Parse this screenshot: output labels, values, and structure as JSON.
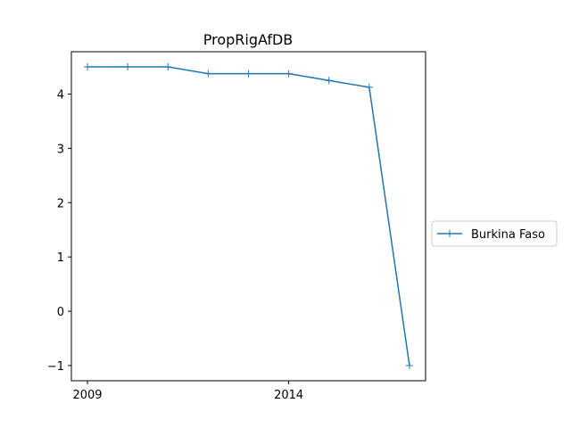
{
  "chart_data": {
    "type": "line",
    "title": "PropRigAfDB",
    "xlabel": "",
    "ylabel": "",
    "x": [
      2009,
      2010,
      2011,
      2012,
      2013,
      2014,
      2015,
      2016,
      2017
    ],
    "series": [
      {
        "name": "Burkina Faso",
        "color": "#1f77b4",
        "marker": "plus",
        "values": [
          4.5,
          4.5,
          4.5,
          4.375,
          4.375,
          4.375,
          4.25,
          4.125,
          -1.0
        ]
      }
    ],
    "xticks": [
      {
        "value": 2009,
        "label": "2009"
      },
      {
        "value": 2014,
        "label": "2014"
      }
    ],
    "yticks": [
      {
        "value": -1,
        "label": "−1"
      },
      {
        "value": 0,
        "label": "0"
      },
      {
        "value": 1,
        "label": "1"
      },
      {
        "value": 2,
        "label": "2"
      },
      {
        "value": 3,
        "label": "3"
      },
      {
        "value": 4,
        "label": "4"
      }
    ],
    "xlim": [
      2008.6,
      2017.4
    ],
    "ylim": [
      -1.28,
      4.78
    ],
    "grid": false,
    "legend_position": "right, outside plot"
  }
}
